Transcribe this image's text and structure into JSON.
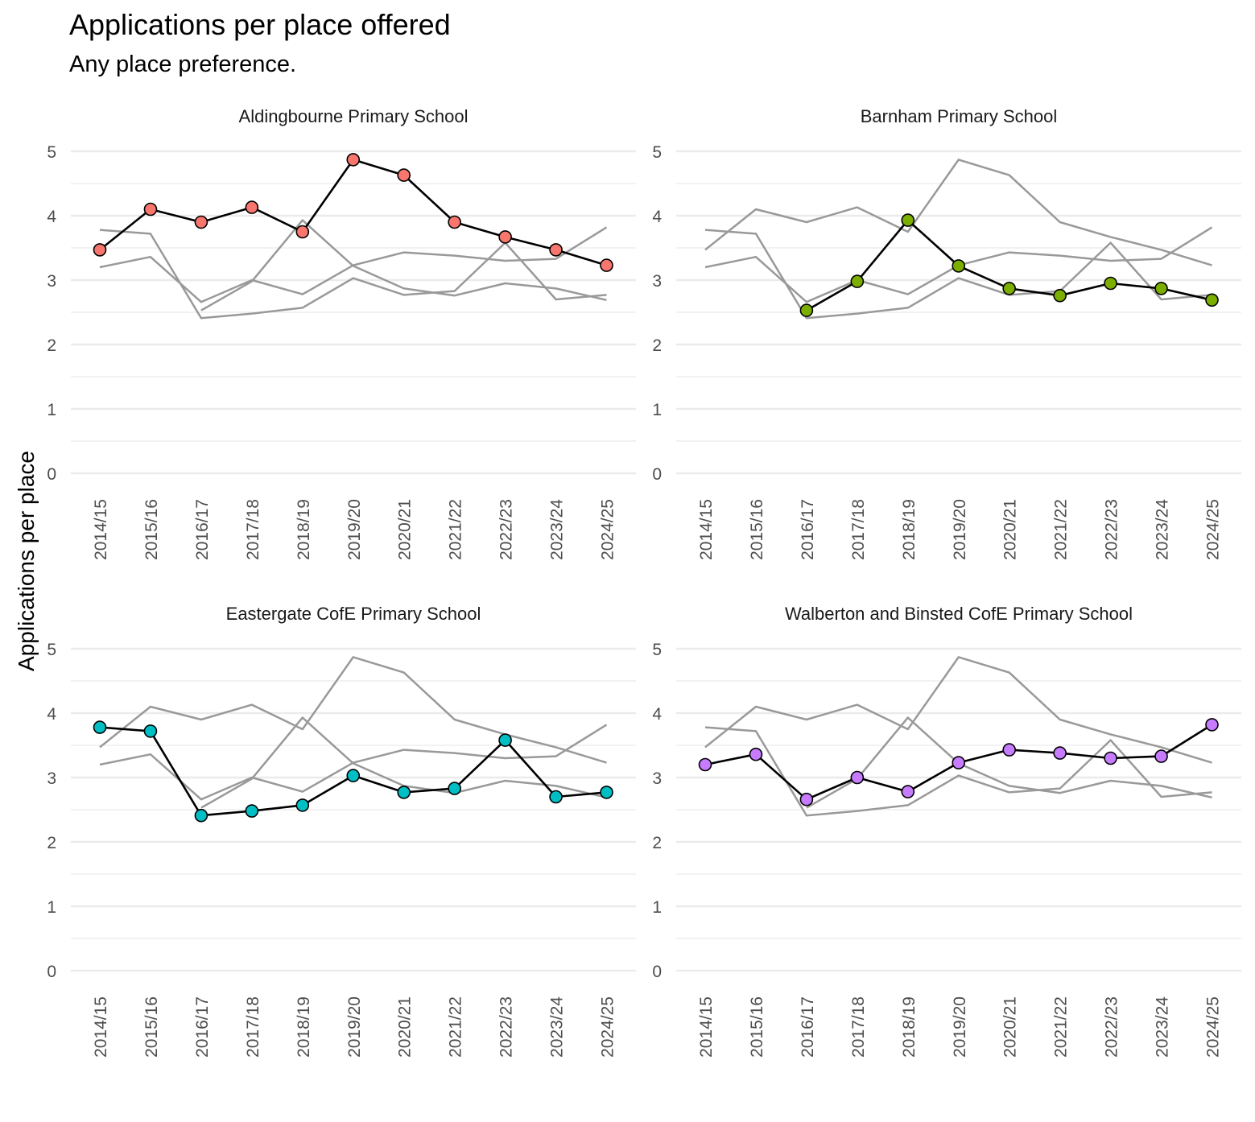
{
  "title": "Applications per place offered",
  "subtitle": "Any place preference.",
  "chart_data": {
    "type": "line",
    "title": "Applications per place offered",
    "subtitle": "Any place preference.",
    "xlabel": "",
    "ylabel": "Applications per place",
    "ylim": [
      0,
      5
    ],
    "yticks": [
      0,
      1,
      2,
      3,
      4,
      5
    ],
    "grid": true,
    "legend": "none",
    "categories": [
      "2014/15",
      "2015/16",
      "2016/17",
      "2017/18",
      "2018/19",
      "2019/20",
      "2020/21",
      "2021/22",
      "2022/23",
      "2023/24",
      "2024/25"
    ],
    "series": [
      {
        "name": "Aldingbourne Primary School",
        "color": "#F8766D",
        "values": [
          3.47,
          4.1,
          3.9,
          4.13,
          3.75,
          4.87,
          4.63,
          3.9,
          3.67,
          3.47,
          3.23
        ]
      },
      {
        "name": "Barnham Primary School",
        "color": "#7CAE00",
        "values": [
          null,
          null,
          2.53,
          2.98,
          3.93,
          3.22,
          2.87,
          2.76,
          2.95,
          2.87,
          2.69
        ]
      },
      {
        "name": "Eastergate CofE Primary School",
        "color": "#00BFC4",
        "values": [
          3.78,
          3.72,
          2.41,
          2.48,
          2.57,
          3.03,
          2.77,
          2.83,
          3.58,
          2.7,
          2.77
        ]
      },
      {
        "name": "Walberton and Binsted CofE Primary School",
        "color": "#C77CFF",
        "values": [
          3.2,
          3.36,
          2.66,
          3.0,
          2.78,
          3.23,
          3.43,
          3.38,
          3.3,
          3.33,
          3.82
        ]
      }
    ],
    "background_line_color": "#999999",
    "highlight_line_color": "#000000",
    "gridline_color": "#EBEBEB"
  }
}
